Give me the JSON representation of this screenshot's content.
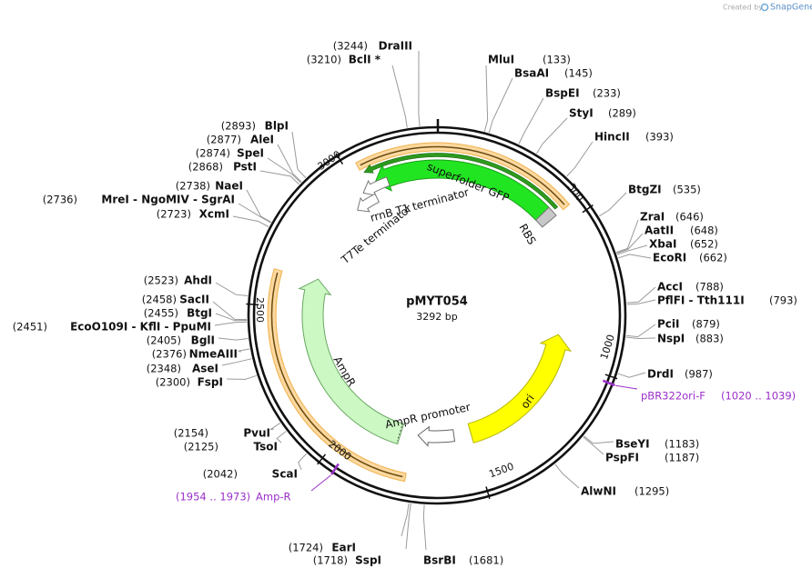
{
  "logo": {
    "prefix": "Created by",
    "brand": "SnapGene"
  },
  "plasmid": {
    "name": "pMYT054",
    "length": "3292 bp"
  },
  "ruler": [
    "500",
    "1000",
    "1500",
    "2000",
    "2500",
    "3000"
  ],
  "features": [
    {
      "label": "superfolder GFP"
    },
    {
      "label": "RBS"
    },
    {
      "label": "rrnB T1 terminator"
    },
    {
      "label": "T7Te terminator"
    },
    {
      "label": "AmpR"
    },
    {
      "label": "AmpR promoter"
    },
    {
      "label": "ori"
    }
  ],
  "primers": [
    {
      "name": "pBR322ori-F",
      "range": "(1020 .. 1039)"
    },
    {
      "name": "Amp-R",
      "range": "(1954 .. 1973)"
    }
  ],
  "sites": [
    {
      "name": "MluI",
      "position": "(133)"
    },
    {
      "name": "BsaAI",
      "position": "(145)"
    },
    {
      "name": "BspEI",
      "position": "(233)"
    },
    {
      "name": "StyI",
      "position": "(289)"
    },
    {
      "name": "HincII",
      "position": "(393)"
    },
    {
      "name": "BtgZI",
      "position": "(535)"
    },
    {
      "name": "ZraI",
      "position": "(646)"
    },
    {
      "name": "AatII",
      "position": "(648)"
    },
    {
      "name": "XbaI",
      "position": "(652)"
    },
    {
      "name": "EcoRI",
      "position": "(662)"
    },
    {
      "name": "AccI",
      "position": "(788)"
    },
    {
      "name": "PflFI - Tth111I",
      "position": "(793)"
    },
    {
      "name": "PciI",
      "position": "(879)"
    },
    {
      "name": "NspI",
      "position": "(883)"
    },
    {
      "name": "DrdI",
      "position": "(987)"
    },
    {
      "name": "BseYI",
      "position": "(1183)"
    },
    {
      "name": "PspFI",
      "position": "(1187)"
    },
    {
      "name": "AlwNI",
      "position": "(1295)"
    },
    {
      "name": "BsrBI",
      "position": "(1681)"
    },
    {
      "name": "SspI",
      "position": "(1718)"
    },
    {
      "name": "EarI",
      "position": "(1724)"
    },
    {
      "name": "ScaI",
      "position": "(2042)"
    },
    {
      "name": "TsoI",
      "position": "(2125)"
    },
    {
      "name": "PvuI",
      "position": "(2154)"
    },
    {
      "name": "FspI",
      "position": "(2300)"
    },
    {
      "name": "AseI",
      "position": "(2348)"
    },
    {
      "name": "NmeAIII",
      "position": "(2376)"
    },
    {
      "name": "BglI",
      "position": "(2405)"
    },
    {
      "name": "EcoO109I - KflI - PpuMI",
      "position": "(2451)"
    },
    {
      "name": "BtgI",
      "position": "(2455)"
    },
    {
      "name": "SacII",
      "position": "(2458)"
    },
    {
      "name": "AhdI",
      "position": "(2523)"
    },
    {
      "name": "XcmI",
      "position": "(2723)"
    },
    {
      "name": "MreI - NgoMIV - SgrAI",
      "position": "(2736)"
    },
    {
      "name": "NaeI",
      "position": "(2738)"
    },
    {
      "name": "PstI",
      "position": "(2868)"
    },
    {
      "name": "SpeI",
      "position": "(2874)"
    },
    {
      "name": "AleI",
      "position": "(2877)"
    },
    {
      "name": "BlpI",
      "position": "(2893)"
    },
    {
      "name": "BclI *",
      "position": "(3210)"
    },
    {
      "name": "DraIII",
      "position": "(3244)"
    }
  ]
}
